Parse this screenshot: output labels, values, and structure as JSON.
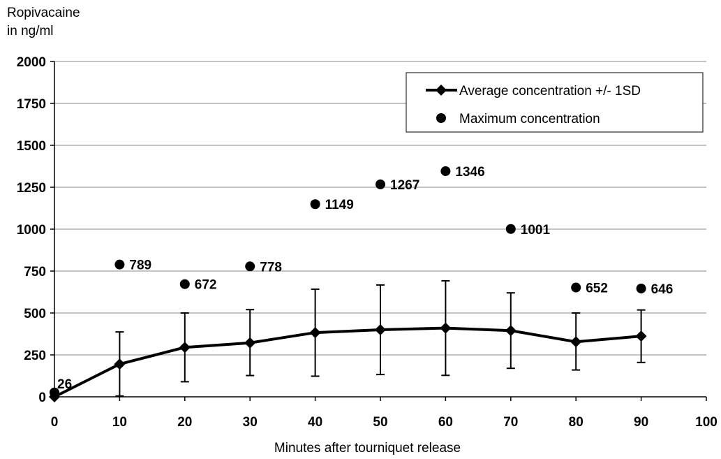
{
  "chart_data": {
    "type": "line",
    "ylabel_line1": "Ropivacaine",
    "ylabel_line2": "in ng/ml",
    "xlabel": "Minutes after tourniquet release",
    "xlim": [
      0,
      100
    ],
    "ylim": [
      0,
      2000
    ],
    "x_ticks": [
      0,
      10,
      20,
      30,
      40,
      50,
      60,
      70,
      80,
      90,
      100
    ],
    "y_ticks": [
      0,
      250,
      500,
      750,
      1000,
      1250,
      1500,
      1750,
      2000
    ],
    "grid": "horizontal",
    "legend_position": "top-right",
    "series": [
      {
        "name": "Average concentration +/- 1SD",
        "style": "line-diamond-errorbars",
        "color": "#000000",
        "x": [
          0,
          10,
          20,
          30,
          40,
          50,
          60,
          70,
          80,
          90
        ],
        "y": [
          0,
          195,
          295,
          322,
          383,
          400,
          410,
          395,
          328,
          362
        ],
        "error_low": [
          0,
          5,
          90,
          127,
          123,
          133,
          128,
          170,
          160,
          205
        ],
        "error_high": [
          0,
          387,
          500,
          520,
          642,
          667,
          692,
          620,
          500,
          518
        ]
      },
      {
        "name": "Maximum concentration",
        "style": "scatter-circle",
        "color": "#000000",
        "x": [
          0,
          10,
          20,
          30,
          40,
          50,
          60,
          70,
          80,
          90
        ],
        "y": [
          26,
          789,
          672,
          778,
          1149,
          1267,
          1346,
          1001,
          652,
          646
        ],
        "labels": [
          "26",
          "789",
          "672",
          "778",
          "1149",
          "1267",
          "1346",
          "1001",
          "652",
          "646"
        ]
      }
    ]
  }
}
